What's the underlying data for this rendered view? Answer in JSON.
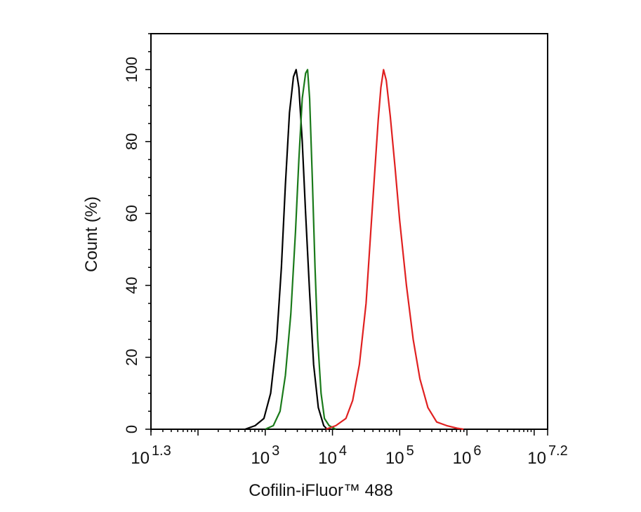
{
  "chart_data": {
    "type": "line",
    "xlabel": "Cofilin-iFluor™ 488",
    "ylabel": "Count  (%)",
    "x_scale": "log10",
    "xlim_exponent": [
      1.3,
      7.2
    ],
    "ylim": [
      0,
      110
    ],
    "y_ticks": [
      "0",
      "20",
      "40",
      "60",
      "80",
      "100"
    ],
    "x_ticks": [
      {
        "base": "10",
        "exp": "1.3",
        "log": 1.3
      },
      {
        "base": "10",
        "exp": "3",
        "log": 3
      },
      {
        "base": "10",
        "exp": "4",
        "log": 4
      },
      {
        "base": "10",
        "exp": "5",
        "log": 5
      },
      {
        "base": "10",
        "exp": "6",
        "log": 6
      },
      {
        "base": "10",
        "exp": "7.2",
        "log": 7.2
      }
    ],
    "series": [
      {
        "color": "#000000",
        "x": [
          2.7,
          2.85,
          2.98,
          3.08,
          3.17,
          3.24,
          3.3,
          3.36,
          3.42,
          3.46,
          3.5,
          3.55,
          3.6,
          3.66,
          3.72,
          3.79,
          3.87,
          3.92
        ],
        "y": [
          0,
          1,
          3,
          10,
          25,
          45,
          68,
          88,
          98,
          100,
          95,
          80,
          60,
          38,
          18,
          6,
          1,
          0
        ]
      },
      {
        "color": "#1a7a1a",
        "x": [
          3.0,
          3.12,
          3.22,
          3.3,
          3.38,
          3.45,
          3.5,
          3.55,
          3.6,
          3.63,
          3.66,
          3.7,
          3.74,
          3.78,
          3.83,
          3.88,
          3.95,
          4.05
        ],
        "y": [
          0,
          1,
          5,
          15,
          32,
          55,
          75,
          92,
          99,
          100,
          92,
          70,
          45,
          25,
          10,
          3,
          1,
          0
        ]
      },
      {
        "color": "#e02020",
        "x": [
          3.9,
          4.05,
          4.2,
          4.3,
          4.4,
          4.5,
          4.57,
          4.63,
          4.68,
          4.72,
          4.76,
          4.8,
          4.86,
          4.93,
          5.0,
          5.1,
          5.2,
          5.3,
          5.42,
          5.55,
          5.7,
          5.85,
          5.95
        ],
        "y": [
          0,
          1,
          3,
          8,
          18,
          35,
          55,
          72,
          86,
          95,
          100,
          97,
          87,
          73,
          58,
          40,
          25,
          14,
          6,
          2,
          1,
          0.3,
          0
        ]
      }
    ]
  }
}
